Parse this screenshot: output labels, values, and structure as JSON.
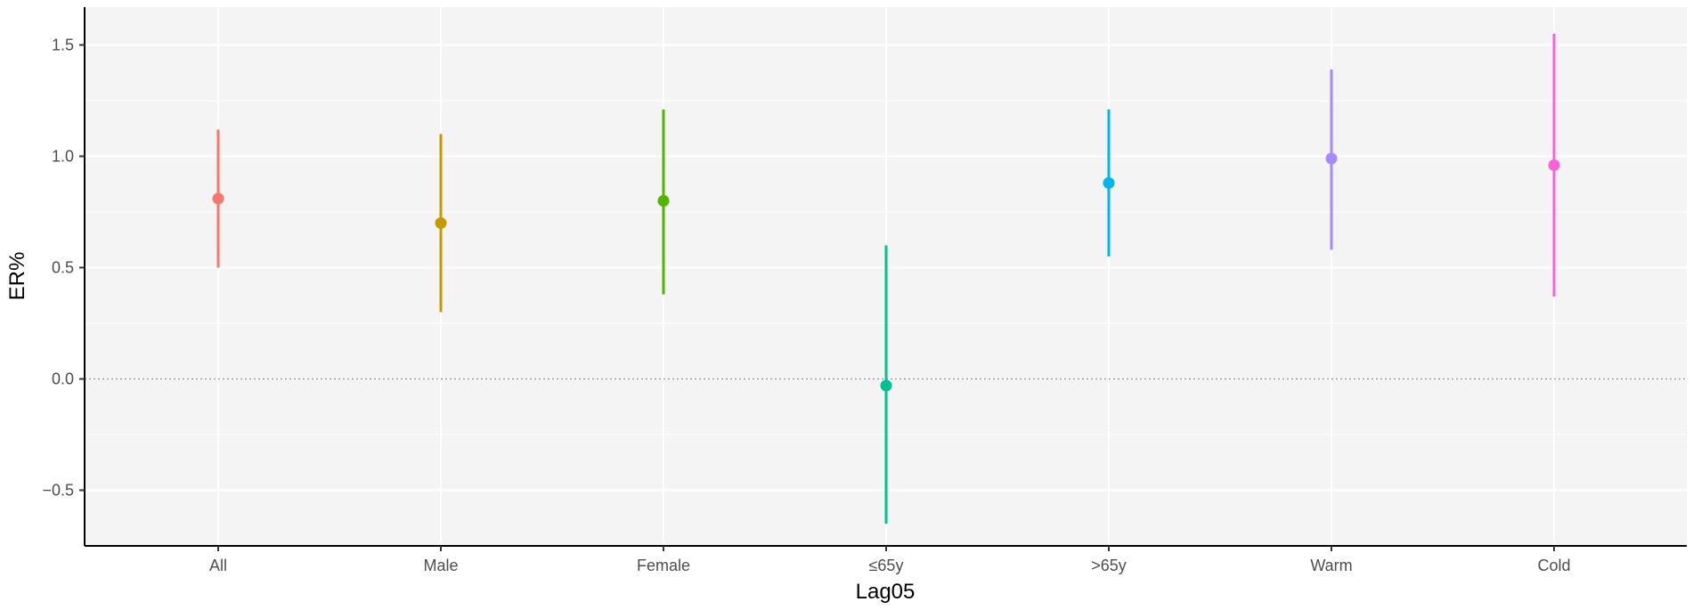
{
  "chart_data": {
    "type": "scatter",
    "subtype": "point-range",
    "title": "",
    "xlabel": "Lag05",
    "ylabel": "ER%",
    "ylim": [
      -0.75,
      1.67
    ],
    "yticks": [
      -0.5,
      0.0,
      0.5,
      1.0,
      1.5
    ],
    "ytick_labels": [
      "−0.5",
      "0.0",
      "0.5",
      "1.0",
      "1.5"
    ],
    "reference_line": {
      "y": 0,
      "style": "dotted"
    },
    "grid": true,
    "legend": "none",
    "categories": [
      "All",
      "Male",
      "Female",
      "≤65y",
      ">65y",
      "Warm",
      "Cold"
    ],
    "estimate": [
      0.81,
      0.7,
      0.8,
      -0.03,
      0.88,
      0.99,
      0.96
    ],
    "lower": [
      0.5,
      0.3,
      0.38,
      -0.65,
      0.55,
      0.58,
      0.37
    ],
    "upper": [
      1.12,
      1.1,
      1.21,
      0.6,
      1.21,
      1.39,
      1.55
    ],
    "colors": [
      "#F8766D",
      "#C49A00",
      "#53B400",
      "#00C094",
      "#00B6EB",
      "#A58AFF",
      "#FB61D7"
    ]
  }
}
